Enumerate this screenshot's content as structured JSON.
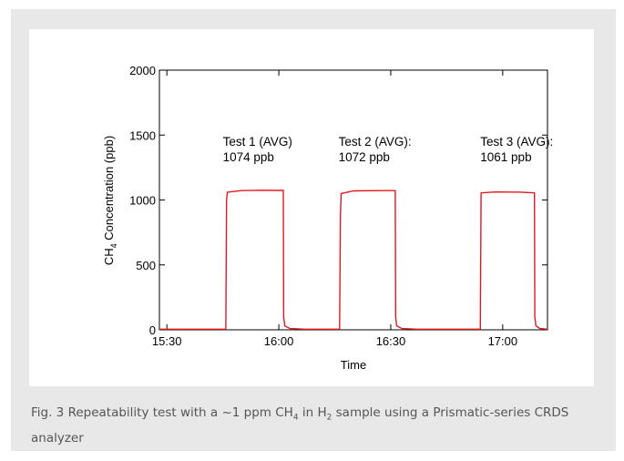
{
  "chart_data": {
    "type": "line",
    "ylabel_main": "CH",
    "ylabel_sub": "4",
    "ylabel_rest": " Concentration (ppb)",
    "xlabel": "Time",
    "xlim_minutes": [
      -2,
      102
    ],
    "ylim": [
      0,
      2000
    ],
    "x_ticks": [
      {
        "label": "15:30",
        "minutes": 0
      },
      {
        "label": "16:00",
        "minutes": 30
      },
      {
        "label": "16:30",
        "minutes": 60
      },
      {
        "label": "17:00",
        "minutes": 90
      }
    ],
    "y_ticks": [
      {
        "label": "0",
        "value": 0
      },
      {
        "label": "500",
        "value": 500
      },
      {
        "label": "1000",
        "value": 1000
      },
      {
        "label": "1500",
        "value": 1500
      },
      {
        "label": "2000",
        "value": 2000
      }
    ],
    "series": [
      {
        "color": "#e0191f",
        "points": [
          [
            -2,
            5
          ],
          [
            15.8,
            5
          ],
          [
            16.0,
            1000
          ],
          [
            16.2,
            1060
          ],
          [
            20,
            1072
          ],
          [
            25,
            1075
          ],
          [
            30,
            1074
          ],
          [
            31.2,
            1074
          ],
          [
            31.3,
            100
          ],
          [
            31.6,
            30
          ],
          [
            33,
            10
          ],
          [
            37,
            5
          ],
          [
            46.3,
            5
          ],
          [
            46.5,
            880
          ],
          [
            46.7,
            1050
          ],
          [
            50,
            1070
          ],
          [
            58,
            1072
          ],
          [
            61.2,
            1072
          ],
          [
            61.3,
            100
          ],
          [
            61.6,
            30
          ],
          [
            63,
            10
          ],
          [
            67,
            5
          ],
          [
            84.0,
            5
          ],
          [
            84.2,
            1055
          ],
          [
            88,
            1062
          ],
          [
            95,
            1060
          ],
          [
            98.5,
            1055
          ],
          [
            98.6,
            100
          ],
          [
            98.9,
            30
          ],
          [
            100,
            10
          ],
          [
            102,
            5
          ]
        ]
      }
    ],
    "annotations": [
      {
        "line1": "Test 1 (AVG)",
        "line2": "1074 ppb",
        "minutes": 15
      },
      {
        "line1": "Test 2 (AVG):",
        "line2": "1072 ppb",
        "minutes": 46
      },
      {
        "line1": "Test 3 (AVG):",
        "line2": "1061 ppb",
        "minutes": 84
      }
    ]
  },
  "caption": {
    "part1": "Fig. 3 Repeatability test with a ~1 ppm CH",
    "sub1": "4",
    "part2": " in H",
    "sub2": "2",
    "part3": " sample using a Prismatic-series CRDS analyzer"
  }
}
